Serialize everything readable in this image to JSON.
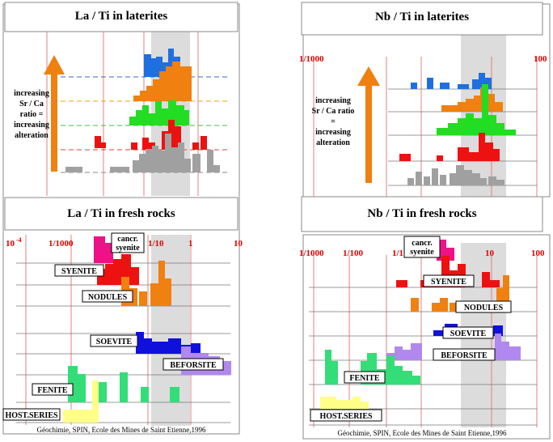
{
  "chart_data": [
    {
      "type": "bar",
      "title": "La  /  Ti  in laterites",
      "annotation": [
        "increasing",
        "Sr / Ca",
        "ratio =",
        "increasing",
        "alteration"
      ],
      "colors": {
        "blue": "#1e6fe0",
        "orange": "#f08010",
        "green": "#22dd22",
        "red": "#ee1111",
        "grey": "#a0a0a0",
        "shade": "#dcdcdc",
        "arrow": "#f08010"
      }
    },
    {
      "type": "bar",
      "title": "Nb  /  Ti  in laterites",
      "tick_labels": [
        "1/1000",
        "100"
      ],
      "annotation": [
        "increasing",
        "Sr / Ca ratio",
        "=",
        "increasing",
        "alteration"
      ]
    },
    {
      "type": "bar",
      "title": "La  /  Ti  in fresh rocks",
      "tick_labels": [
        "10",
        "-4",
        "1/1000",
        "1/10",
        "1",
        "10"
      ],
      "series_labels": [
        "cancr.",
        "syenite",
        "SYENITE",
        "NODULES",
        "SOEVITE",
        "BEFORSITE",
        "FENITE",
        "HOST.SERIES"
      ],
      "colors": {
        "pink": "#ee1188",
        "red": "#ee1111",
        "orange": "#f08010",
        "blue": "#1010dd",
        "purple": "#b088ee",
        "green": "#33dd77",
        "yellow": "#ffff88"
      }
    },
    {
      "type": "bar",
      "title": "Nb  /  Ti  in fresh rocks",
      "tick_labels": [
        "1/1000",
        "1/100",
        "1/1",
        "10",
        "100"
      ],
      "series_labels": [
        "cancr.",
        "syenite",
        "SYENITE",
        "NODULES",
        "SOEVITE",
        "BEFORSITE",
        "FENITE",
        "HOST.SERIES"
      ]
    }
  ],
  "credit": "Géochimie, SPIN, Ecole des Mines de Saint Etienne,1996"
}
